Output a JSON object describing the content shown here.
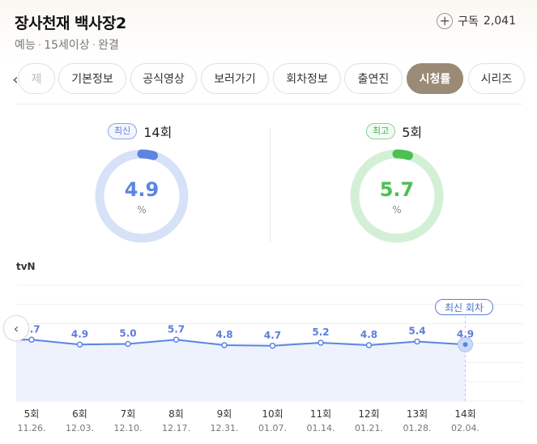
{
  "header": {
    "title": "장사천재 백사장2",
    "genre": "예능",
    "rating": "15세이상",
    "status": "완결",
    "subscribe_label": "구독",
    "subscribe_count": "2,041"
  },
  "tabs": [
    {
      "label": "제",
      "active": false
    },
    {
      "label": "기본정보",
      "active": false
    },
    {
      "label": "공식영상",
      "active": false
    },
    {
      "label": "보러가기",
      "active": false
    },
    {
      "label": "회차정보",
      "active": false
    },
    {
      "label": "출연진",
      "active": false
    },
    {
      "label": "시청률",
      "active": true
    },
    {
      "label": "시리즈",
      "active": false
    }
  ],
  "latest": {
    "badge": "최신",
    "episode": "14회",
    "value": "4.9",
    "unit": "%",
    "color": "#5b85e0"
  },
  "best": {
    "badge": "최고",
    "episode": "5회",
    "value": "5.7",
    "unit": "%",
    "color": "#4cbf55"
  },
  "chart": {
    "channel": "tvN",
    "latest_tag": "최신 회차"
  },
  "chart_data": {
    "type": "line",
    "categories": [
      "5회",
      "6회",
      "7회",
      "8회",
      "9회",
      "10회",
      "11회",
      "12회",
      "13회",
      "14회"
    ],
    "dates": [
      "11.26.",
      "12.03.",
      "12.10.",
      "12.17.",
      "12.31.",
      "01.07.",
      "01.14.",
      "01.21.",
      "01.28.",
      "02.04."
    ],
    "series": [
      {
        "values": [
          5.7,
          4.9,
          5.0,
          5.7,
          4.8,
          4.7,
          5.2,
          4.8,
          5.4,
          4.9
        ],
        "color": "#5b85e0"
      }
    ],
    "grid": true,
    "legend": "none"
  }
}
